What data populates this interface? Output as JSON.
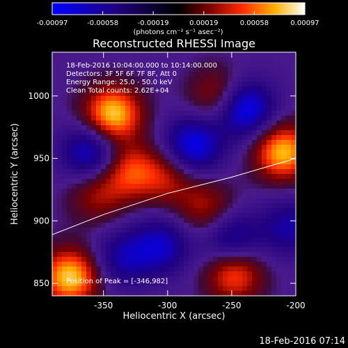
{
  "title": "Reconstructed RHESSI Image",
  "timestamp": "18-Feb-2016 07:14",
  "colorbar": {
    "ticks": [
      "-0.00097",
      "-0.00058",
      "-0.00019",
      "0.00019",
      "0.00058",
      "0.00097"
    ],
    "units": "(photons cm⁻² s⁻¹ asec⁻²)",
    "min": -0.00097,
    "max": 0.00097
  },
  "annotations": [
    "18-Feb-2016 10:04:00.000 to 10:14:00.000",
    "Detectors: 3F 5F 6F 7F 8F, Att 0",
    "Energy Range: 25.0 - 50.0 keV",
    "Clean    Total counts: 2.62E+04"
  ],
  "peak_label": "Position of Peak = [-346,982]",
  "chart_data": {
    "type": "heatmap",
    "title": "Reconstructed RHESSI Image",
    "xlabel": "Heliocentric X (arcsec)",
    "ylabel": "Heliocentric Y (arcsec)",
    "xlim": [
      -390,
      -200
    ],
    "ylim": [
      840,
      1035
    ],
    "xticks": [
      -350,
      -300,
      -250,
      -200
    ],
    "yticks": [
      850,
      900,
      950,
      1000
    ],
    "limb_line": [
      [
        -390,
        889
      ],
      [
        -350,
        905
      ],
      [
        -300,
        922
      ],
      [
        -250,
        935
      ],
      [
        -200,
        950
      ]
    ],
    "peaks": [
      {
        "x": -343,
        "y": 985,
        "value": 0.00097
      },
      {
        "x": -376,
        "y": 855,
        "value": 0.00095
      },
      {
        "x": -210,
        "y": 955,
        "value": 0.0009
      },
      {
        "x": -248,
        "y": 858,
        "value": 0.0007
      },
      {
        "x": -330,
        "y": 940,
        "value": 0.0006
      },
      {
        "x": -300,
        "y": 935,
        "value": 0.00045
      },
      {
        "x": -270,
        "y": 910,
        "value": 0.00045
      },
      {
        "x": -260,
        "y": 1000,
        "value": 0.0005
      },
      {
        "x": -355,
        "y": 920,
        "value": 0.0004
      },
      {
        "x": -240,
        "y": 990,
        "value": -0.0009
      },
      {
        "x": -280,
        "y": 960,
        "value": -0.0008
      },
      {
        "x": -360,
        "y": 955,
        "value": -0.0007
      },
      {
        "x": -305,
        "y": 880,
        "value": -0.0006
      },
      {
        "x": -250,
        "y": 885,
        "value": -0.0006
      },
      {
        "x": -335,
        "y": 870,
        "value": -0.0005
      },
      {
        "x": -205,
        "y": 895,
        "value": -0.0005
      }
    ]
  }
}
